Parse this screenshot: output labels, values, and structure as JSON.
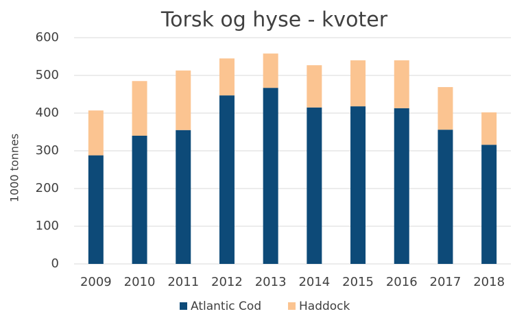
{
  "chart_data": {
    "type": "stacked_bar",
    "title": "Torsk og hyse - kvoter",
    "y_label": "1000 tonnes",
    "categories": [
      "2009",
      "2010",
      "2011",
      "2012",
      "2013",
      "2014",
      "2015",
      "2016",
      "2017",
      "2018"
    ],
    "series": [
      {
        "name": "Atlantic Cod",
        "color": "#0d4a78",
        "values": [
          288,
          340,
          355,
          447,
          467,
          415,
          418,
          413,
          356,
          316
        ]
      },
      {
        "name": "Haddock",
        "color": "#fbc491",
        "values": [
          119,
          145,
          158,
          98,
          91,
          112,
          122,
          127,
          113,
          86
        ]
      }
    ],
    "ylim": [
      0,
      600
    ],
    "yticks": [
      0,
      100,
      200,
      300,
      400,
      500,
      600
    ],
    "grid": true,
    "legend": "bottom"
  }
}
